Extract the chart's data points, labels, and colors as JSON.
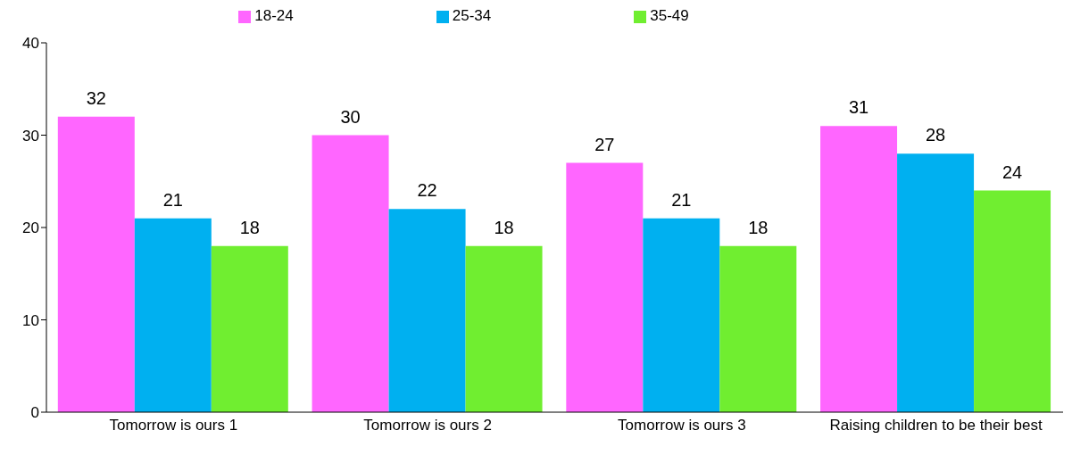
{
  "chart_data": {
    "type": "bar",
    "categories": [
      "Tomorrow is ours 1",
      "Tomorrow is ours 2",
      "Tomorrow is ours 3",
      "Raising children to be their best"
    ],
    "series": [
      {
        "name": "18-24",
        "color": "#ff66ff",
        "values": [
          32,
          30,
          27,
          31
        ]
      },
      {
        "name": "25-34",
        "color": "#00b0f0",
        "values": [
          21,
          22,
          21,
          28
        ]
      },
      {
        "name": "35-49",
        "color": "#70ee30",
        "values": [
          18,
          18,
          18,
          24
        ]
      }
    ],
    "ylim": [
      0,
      40
    ],
    "yticks": [
      0,
      10,
      20,
      30,
      40
    ],
    "data_labels": true,
    "legend": "top",
    "grid": false
  }
}
